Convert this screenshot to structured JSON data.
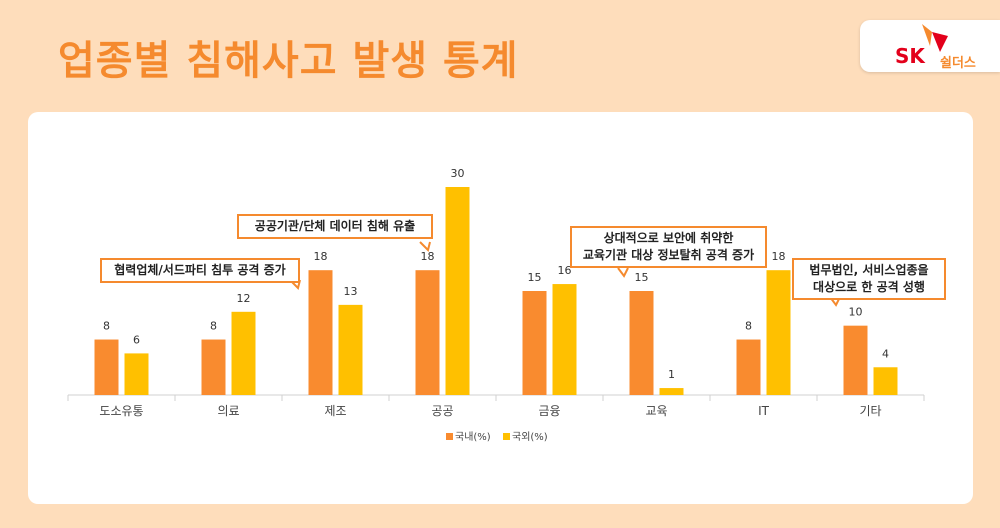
{
  "title": "업종별 침해사고 발생 통계",
  "logo": {
    "brand": "SK",
    "sub": "쉴더스"
  },
  "colors": {
    "domestic": "#F98B2F",
    "foreign": "#FFC000",
    "title": "#F58A2E",
    "background": "#FEDDBB"
  },
  "chart_data": {
    "type": "bar",
    "categories": [
      "도소유통",
      "의료",
      "제조",
      "공공",
      "금융",
      "교육",
      "IT",
      "기타"
    ],
    "series": [
      {
        "name": "국내(%)",
        "values": [
          8,
          8,
          18,
          18,
          15,
          15,
          8,
          10
        ]
      },
      {
        "name": "국외(%)",
        "values": [
          6,
          12,
          13,
          30,
          16,
          1,
          18,
          4
        ]
      }
    ],
    "ylim": [
      0,
      30
    ],
    "grid": false,
    "legend": "bottom",
    "annotations": [
      "협력업체/서드파티 침투 공격 증가",
      "공공기관/단체 데이터 침해 유출",
      "상대적으로 보안에 취약한\n교육기관 대상 정보탈취 공격 증가",
      "법무법인, 서비스업종을\n대상으로 한 공격 성행"
    ]
  }
}
